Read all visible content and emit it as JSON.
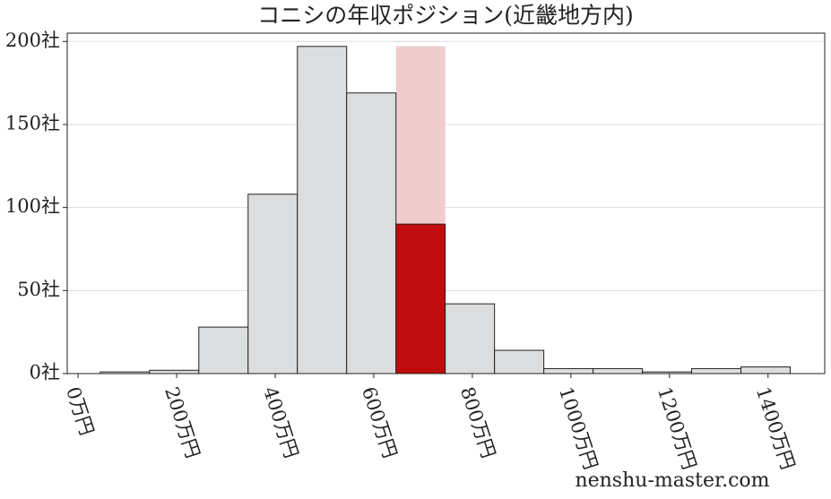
{
  "chart_data": {
    "type": "histogram",
    "title": "コニシの年収ポジション(近畿地方内)",
    "watermark": "nenshu-master.com",
    "bins": [
      45,
      145,
      245,
      345,
      445,
      545,
      645,
      745,
      845,
      945,
      1045,
      1145,
      1245,
      1345,
      1445
    ],
    "counts": [
      1,
      2,
      28,
      108,
      197,
      169,
      90,
      42,
      14,
      3,
      3,
      1,
      3,
      4
    ],
    "color": "#dcdddf",
    "highlight": {
      "bin": 6,
      "color": "#c00c0c",
      "band_height": 197,
      "band_color": "#f0cccc"
    },
    "xlim": [
      -22,
      1515
    ],
    "ylim": [
      0,
      205
    ],
    "xticks": [
      {
        "value": 0,
        "label": "0万円"
      },
      {
        "value": 200,
        "label": "200万円"
      },
      {
        "value": 400,
        "label": "400万円"
      },
      {
        "value": 600,
        "label": "600万円"
      },
      {
        "value": 800,
        "label": "800万円"
      },
      {
        "value": 1000,
        "label": "1000万円"
      },
      {
        "value": 1200,
        "label": "1200万円"
      },
      {
        "value": 1400,
        "label": "1400万円"
      }
    ],
    "yticks": [
      {
        "value": 0,
        "label": "0社"
      },
      {
        "value": 50,
        "label": "50社"
      },
      {
        "value": 100,
        "label": "100社"
      },
      {
        "value": 150,
        "label": "150社"
      },
      {
        "value": 200,
        "label": "200社"
      }
    ],
    "grid": true
  }
}
